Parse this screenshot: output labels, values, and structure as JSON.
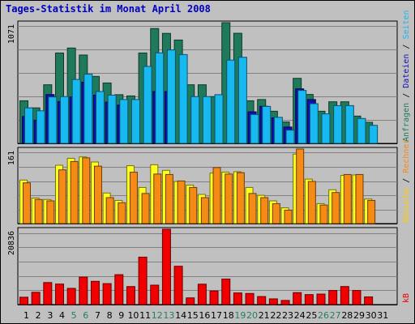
{
  "title": "Tages-Statistik im Monat April 2008",
  "colors": {
    "background": "#c0c0c0",
    "title": "#0000c0",
    "gridline": "#808080",
    "dark_green_bar": "#1e7a5a",
    "light_blue_bar": "#18b8f0",
    "dark_blue_bar": "#1010b0",
    "yellow_bar": "#ffff20",
    "orange_bar": "#f58a14",
    "red_bar": "#f00000",
    "weekend_day_label": "#208060",
    "weekday_day_label": "#000000"
  },
  "chart_data": [
    {
      "type": "bar",
      "panel": "top",
      "ymax_label": "1071",
      "ylim": [
        0,
        1071
      ],
      "right_label_parts": [
        {
          "text": "Anfragen",
          "color": "#1e7a5a"
        },
        {
          "text": " / ",
          "color": "#000000"
        },
        {
          "text": "Dateien",
          "color": "#1010b0"
        },
        {
          "text": " / ",
          "color": "#000000"
        },
        {
          "text": "Seiten",
          "color": "#18b8f0"
        }
      ],
      "categories": [
        1,
        2,
        3,
        4,
        5,
        6,
        7,
        8,
        9,
        10,
        11,
        12,
        13,
        14,
        15,
        16,
        17,
        18,
        19,
        20,
        21,
        22,
        23,
        24,
        25,
        26,
        27,
        28,
        29,
        30,
        31
      ],
      "series": [
        {
          "name": "Anfragen",
          "color": "#1e7a5a",
          "values": [
            378,
            315,
            520,
            802,
            846,
            784,
            594,
            536,
            432,
            421,
            802,
            1019,
            976,
            917,
            520,
            520,
            415,
            1071,
            977,
            378,
            389,
            285,
            190,
            577,
            434,
            285,
            369,
            369,
            242,
            187,
            0
          ]
        },
        {
          "name": "Dateien",
          "color": "#1010b0",
          "values": [
            238,
            206,
            433,
            371,
            412,
            543,
            428,
            366,
            339,
            0,
            0,
            460,
            460,
            0,
            0,
            0,
            0,
            0,
            0,
            280,
            329,
            227,
            145,
            484,
            389,
            0,
            0,
            0,
            0,
            0,
            0
          ]
        },
        {
          "name": "Seiten",
          "color": "#18b8f0",
          "values": [
            315,
            289,
            412,
            415,
            567,
            614,
            460,
            428,
            389,
            389,
            683,
            803,
            829,
            788,
            415,
            415,
            432,
            739,
            764,
            256,
            328,
            231,
            117,
            470,
            352,
            262,
            335,
            335,
            221,
            160,
            0
          ]
        }
      ]
    },
    {
      "type": "bar",
      "panel": "middle",
      "ymax_label": "161",
      "ylim": [
        0,
        161
      ],
      "right_label_parts": [
        {
          "text": "Besuche",
          "color": "#ffcc00"
        },
        {
          "text": " / ",
          "color": "#000000"
        },
        {
          "text": "Rechner",
          "color": "#f58a14"
        }
      ],
      "categories": [
        1,
        2,
        3,
        4,
        5,
        6,
        7,
        8,
        9,
        10,
        11,
        12,
        13,
        14,
        15,
        16,
        17,
        18,
        19,
        20,
        21,
        22,
        23,
        24,
        25,
        26,
        27,
        28,
        29,
        30,
        31
      ],
      "series": [
        {
          "name": "Besuche",
          "color": "#ffff20",
          "values": [
            94,
            55,
            52,
            126,
            141,
            144,
            133,
            66,
            50,
            125,
            78,
            127,
            115,
            91,
            83,
            63,
            109,
            111,
            112,
            78,
            61,
            49,
            34,
            150,
            96,
            43,
            73,
            104,
            105,
            53,
            0
          ]
        },
        {
          "name": "Rechner",
          "color": "#f58a14",
          "values": [
            88,
            52,
            49,
            116,
            134,
            142,
            124,
            56,
            45,
            111,
            65,
            107,
            106,
            92,
            78,
            56,
            121,
            107,
            110,
            65,
            56,
            43,
            29,
            161,
            91,
            40,
            67,
            106,
            106,
            50,
            0
          ]
        }
      ]
    },
    {
      "type": "bar",
      "panel": "bottom",
      "ymax_label": "20836",
      "ylim": [
        0,
        20836
      ],
      "right_label_parts": [
        {
          "text": "kB",
          "color": "#f00000"
        }
      ],
      "categories": [
        1,
        2,
        3,
        4,
        5,
        6,
        7,
        8,
        9,
        10,
        11,
        12,
        13,
        14,
        15,
        16,
        17,
        18,
        19,
        20,
        21,
        22,
        23,
        24,
        25,
        26,
        27,
        28,
        29,
        30,
        31
      ],
      "series": [
        {
          "name": "kB",
          "color": "#f00000",
          "values": [
            2030,
            3400,
            6090,
            5670,
            4480,
            7590,
            6430,
            5790,
            8270,
            4980,
            13120,
            5370,
            20836,
            10600,
            1850,
            5640,
            3760,
            7060,
            3220,
            3070,
            2220,
            1580,
            1140,
            3300,
            2760,
            2900,
            3900,
            4990,
            3900,
            2120,
            0
          ]
        }
      ]
    }
  ],
  "x_axis": {
    "labels": [
      "1",
      "2",
      "3",
      "4",
      "5",
      "6",
      "7",
      "8",
      "9",
      "10",
      "11",
      "12",
      "13",
      "14",
      "15",
      "16",
      "17",
      "18",
      "19",
      "20",
      "21",
      "22",
      "23",
      "24",
      "25",
      "26",
      "27",
      "28",
      "29",
      "30",
      "31"
    ],
    "weekend_days": [
      5,
      6,
      12,
      13,
      19,
      20,
      26,
      27
    ]
  }
}
